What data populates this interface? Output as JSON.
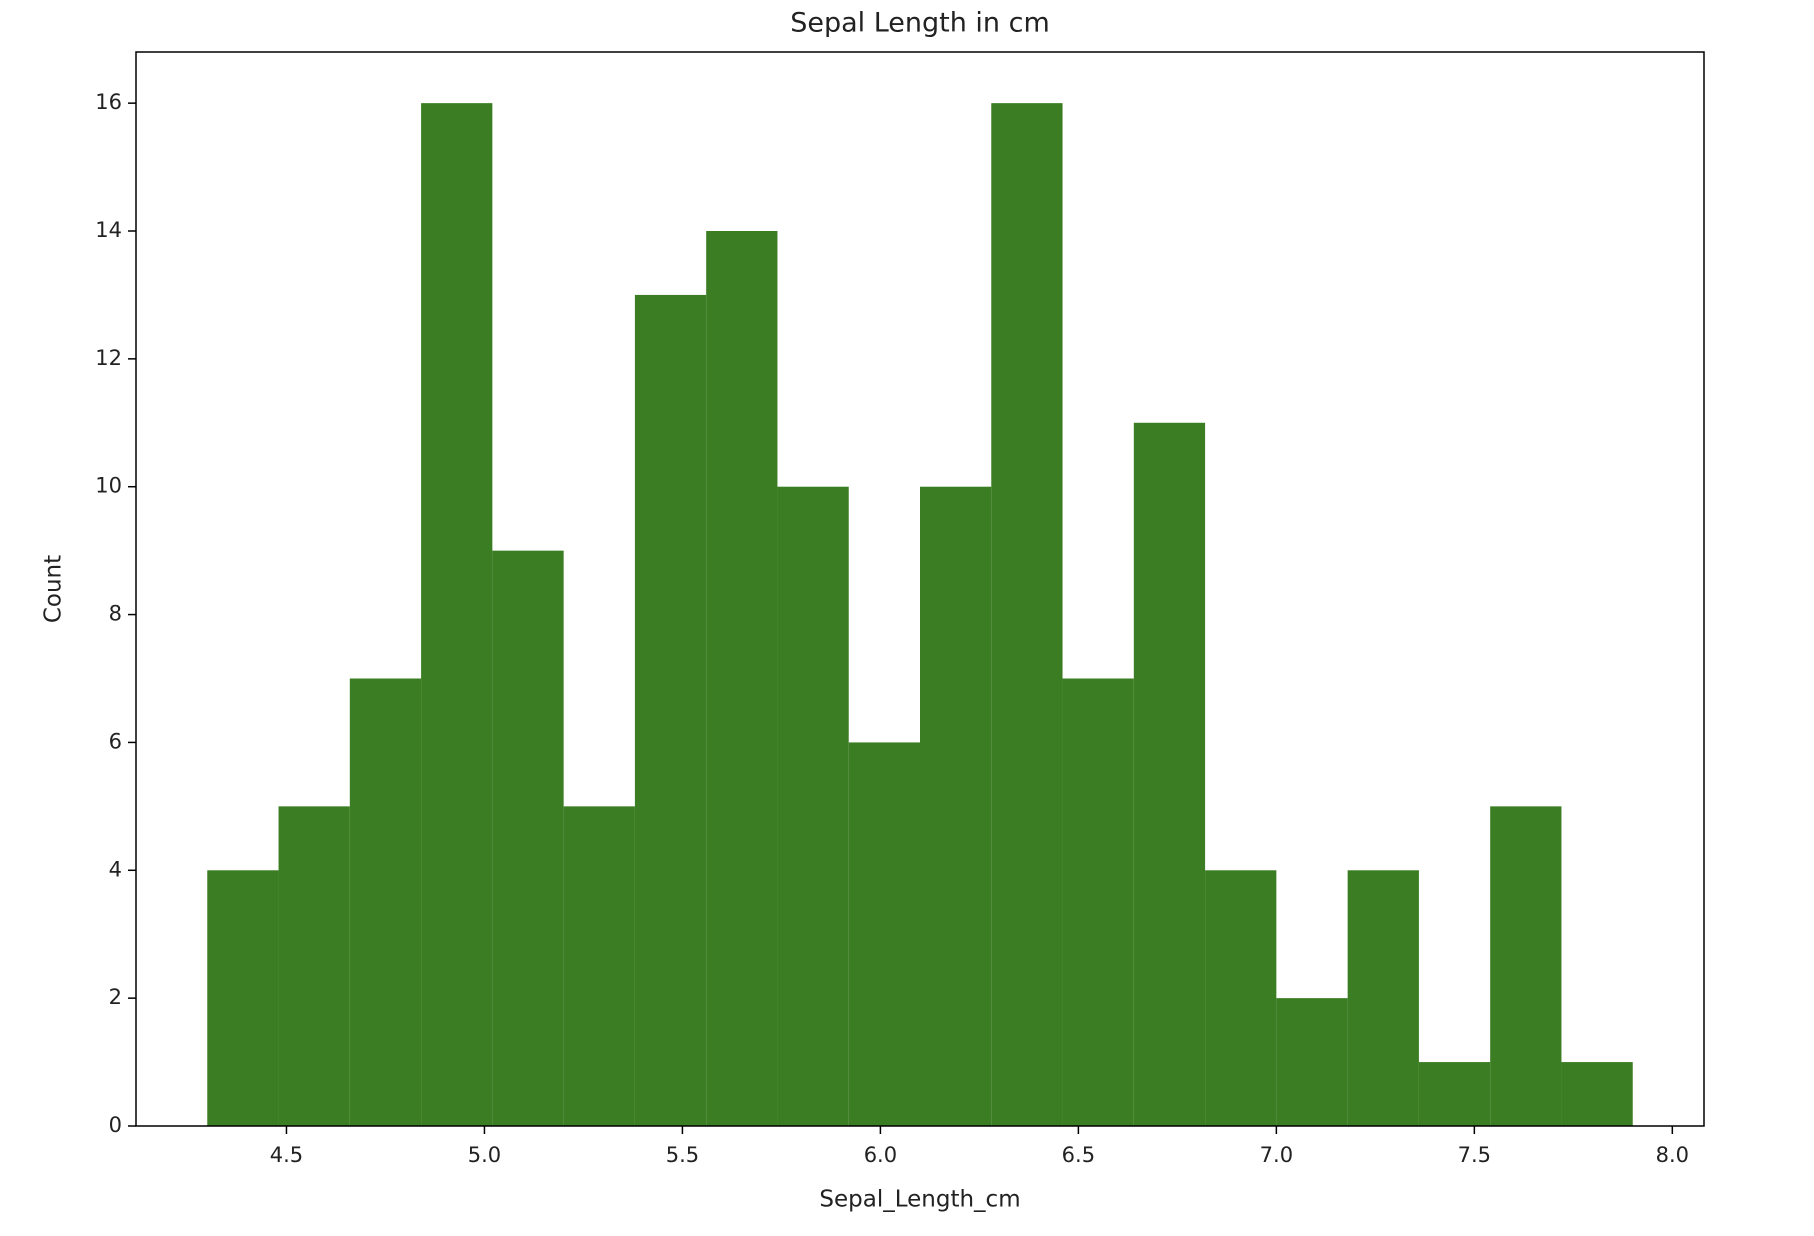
{
  "chart_data": {
    "type": "histogram",
    "title": "Sepal Length in cm",
    "x_label": "Sepal_Length_cm",
    "y_label": "Count",
    "bins": [
      4.3,
      4.48,
      4.66,
      4.84,
      5.02,
      5.2,
      5.38,
      5.56,
      5.74,
      5.92,
      6.1,
      6.28,
      6.46,
      6.64,
      6.82,
      7.0,
      7.18,
      7.36,
      7.54,
      7.72,
      7.9
    ],
    "values": [
      4,
      5,
      7,
      16,
      9,
      5,
      13,
      14,
      10,
      6,
      10,
      16,
      7,
      11,
      4,
      2,
      4,
      1,
      5,
      1
    ],
    "color": "#3a7d22",
    "xlim": [
      4.12,
      8.08
    ],
    "xticks": [
      4.5,
      {
        "value": 5.0,
        "label": "5.0"
      },
      5.5,
      {
        "value": 6.0,
        "label": "6.0"
      },
      6.5,
      {
        "value": 7.0,
        "label": "7.0"
      },
      7.5,
      {
        "value": 8.0,
        "label": "8.0"
      }
    ],
    "ylim": [
      0,
      16.8
    ],
    "yticks": [
      0,
      2,
      4,
      6,
      8,
      10,
      12,
      14,
      16
    ],
    "grid": false
  }
}
